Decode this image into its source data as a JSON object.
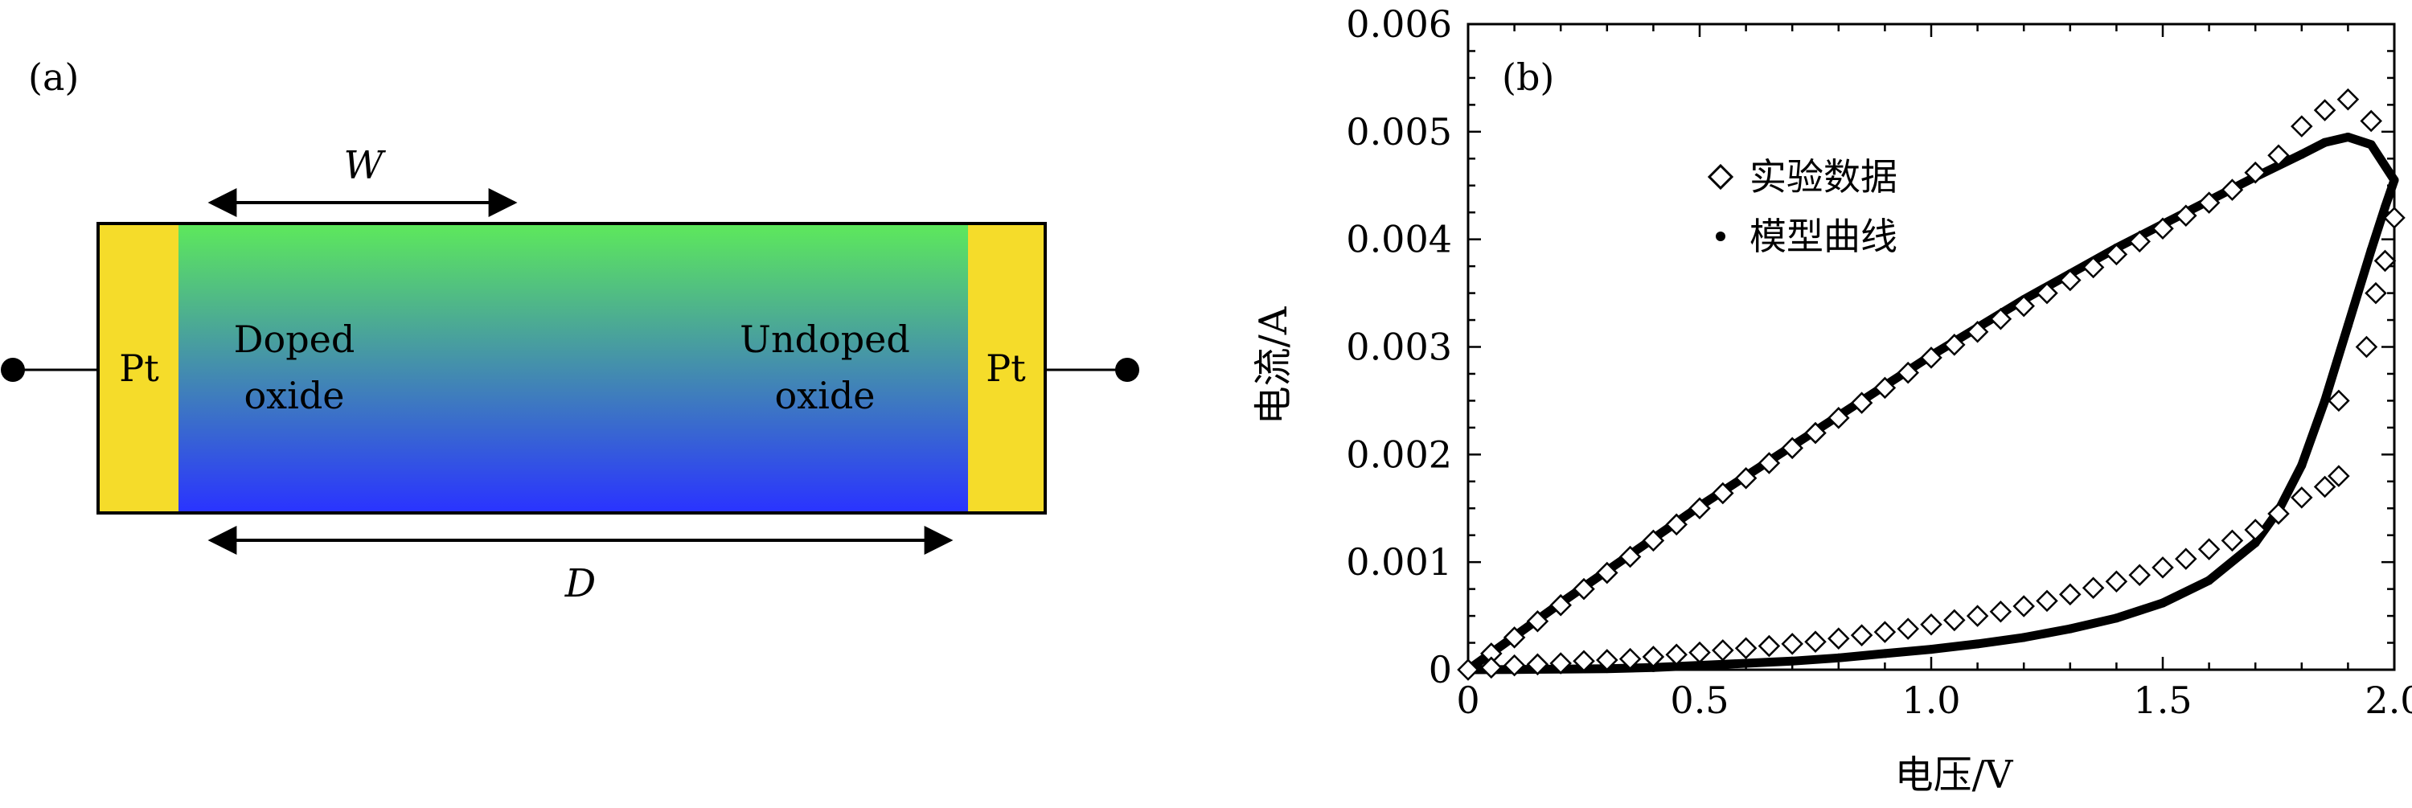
{
  "panel_a": {
    "label": "(a)",
    "width_label": "W",
    "length_label": "D",
    "left_electrode": "Pt",
    "right_electrode": "Pt",
    "doped_region_line1": "Doped",
    "doped_region_line2": "oxide",
    "undoped_region_line1": "Undoped",
    "undoped_region_line2": "oxide",
    "colors": {
      "electrode": "#f5dc2a",
      "gradient_top": "#5de85c",
      "gradient_bottom": "#2a34ff"
    }
  },
  "panel_b": {
    "label": "(b)",
    "legend": {
      "experimental": "实验数据",
      "model": "模型曲线"
    }
  },
  "chart_data": {
    "type": "scatter",
    "xlabel": "电压/V",
    "ylabel": "电流/A",
    "xlim": [
      0,
      2.0
    ],
    "ylim": [
      0,
      0.006
    ],
    "x_ticks": [
      "0",
      "0.5",
      "1.0",
      "1.5",
      "2.0"
    ],
    "y_ticks": [
      "0",
      "0.001",
      "0.002",
      "0.003",
      "0.004",
      "0.005",
      "0.006"
    ],
    "grid": false,
    "legend_position": "top-left",
    "series": [
      {
        "name": "实验数据",
        "marker": "diamond",
        "points": [
          [
            0.0,
            0.0
          ],
          [
            0.05,
            0.00015
          ],
          [
            0.1,
            0.0003
          ],
          [
            0.15,
            0.00045
          ],
          [
            0.2,
            0.0006
          ],
          [
            0.25,
            0.00075
          ],
          [
            0.3,
            0.0009
          ],
          [
            0.35,
            0.00105
          ],
          [
            0.4,
            0.0012
          ],
          [
            0.45,
            0.00135
          ],
          [
            0.5,
            0.0015
          ],
          [
            0.55,
            0.00164
          ],
          [
            0.6,
            0.00178
          ],
          [
            0.65,
            0.00192
          ],
          [
            0.7,
            0.00206
          ],
          [
            0.75,
            0.0022
          ],
          [
            0.8,
            0.00234
          ],
          [
            0.85,
            0.00248
          ],
          [
            0.9,
            0.00262
          ],
          [
            0.95,
            0.00276
          ],
          [
            1.0,
            0.0029
          ],
          [
            1.05,
            0.00302
          ],
          [
            1.1,
            0.00314
          ],
          [
            1.15,
            0.00326
          ],
          [
            1.2,
            0.00338
          ],
          [
            1.25,
            0.0035
          ],
          [
            1.3,
            0.00362
          ],
          [
            1.35,
            0.00374
          ],
          [
            1.4,
            0.00386
          ],
          [
            1.45,
            0.00398
          ],
          [
            1.5,
            0.0041
          ],
          [
            1.55,
            0.00422
          ],
          [
            1.6,
            0.00434
          ],
          [
            1.65,
            0.00446
          ],
          [
            1.7,
            0.00462
          ],
          [
            1.75,
            0.00478
          ],
          [
            1.8,
            0.00505
          ],
          [
            1.85,
            0.0052
          ],
          [
            1.9,
            0.0053
          ],
          [
            1.95,
            0.0051
          ],
          [
            2.0,
            0.0042
          ],
          [
            1.98,
            0.0038
          ],
          [
            1.96,
            0.0035
          ],
          [
            1.94,
            0.003
          ],
          [
            1.88,
            0.0025
          ],
          [
            1.88,
            0.0018
          ],
          [
            1.85,
            0.0017
          ],
          [
            1.8,
            0.0016
          ],
          [
            1.75,
            0.00145
          ],
          [
            1.7,
            0.0013
          ],
          [
            1.65,
            0.0012
          ],
          [
            1.6,
            0.00112
          ],
          [
            1.55,
            0.00103
          ],
          [
            1.5,
            0.00095
          ],
          [
            1.45,
            0.00088
          ],
          [
            1.4,
            0.00082
          ],
          [
            1.35,
            0.00076
          ],
          [
            1.3,
            0.0007
          ],
          [
            1.25,
            0.00064
          ],
          [
            1.2,
            0.00059
          ],
          [
            1.15,
            0.00054
          ],
          [
            1.1,
            0.0005
          ],
          [
            1.05,
            0.00046
          ],
          [
            1.0,
            0.00042
          ],
          [
            0.95,
            0.00038
          ],
          [
            0.9,
            0.00035
          ],
          [
            0.85,
            0.00032
          ],
          [
            0.8,
            0.00029
          ],
          [
            0.75,
            0.00026
          ],
          [
            0.7,
            0.00024
          ],
          [
            0.65,
            0.00022
          ],
          [
            0.6,
            0.0002
          ],
          [
            0.55,
            0.00018
          ],
          [
            0.5,
            0.00016
          ],
          [
            0.45,
            0.00014
          ],
          [
            0.4,
            0.00012
          ],
          [
            0.35,
            0.0001
          ],
          [
            0.3,
            9e-05
          ],
          [
            0.25,
            8e-05
          ],
          [
            0.2,
            6e-05
          ],
          [
            0.15,
            5e-05
          ],
          [
            0.1,
            4e-05
          ],
          [
            0.05,
            2e-05
          ]
        ]
      },
      {
        "name": "模型曲线",
        "marker": "dot",
        "points": [
          [
            0.0,
            0.0
          ],
          [
            0.1,
            0.00031
          ],
          [
            0.2,
            0.00062
          ],
          [
            0.3,
            0.00092
          ],
          [
            0.4,
            0.00122
          ],
          [
            0.5,
            0.00152
          ],
          [
            0.6,
            0.0018
          ],
          [
            0.7,
            0.00208
          ],
          [
            0.8,
            0.00236
          ],
          [
            0.9,
            0.00264
          ],
          [
            1.0,
            0.00292
          ],
          [
            1.1,
            0.00318
          ],
          [
            1.2,
            0.00344
          ],
          [
            1.3,
            0.00368
          ],
          [
            1.4,
            0.00392
          ],
          [
            1.5,
            0.00414
          ],
          [
            1.6,
            0.00436
          ],
          [
            1.7,
            0.00458
          ],
          [
            1.8,
            0.00479
          ],
          [
            1.85,
            0.0049
          ],
          [
            1.9,
            0.00495
          ],
          [
            1.95,
            0.00488
          ],
          [
            2.0,
            0.00455
          ],
          [
            1.98,
            0.0043
          ],
          [
            1.95,
            0.0039
          ],
          [
            1.9,
            0.0032
          ],
          [
            1.85,
            0.0025
          ],
          [
            1.8,
            0.0019
          ],
          [
            1.75,
            0.00148
          ],
          [
            1.7,
            0.00118
          ],
          [
            1.6,
            0.00083
          ],
          [
            1.5,
            0.00062
          ],
          [
            1.4,
            0.00048
          ],
          [
            1.3,
            0.00038
          ],
          [
            1.2,
            0.0003
          ],
          [
            1.1,
            0.00024
          ],
          [
            1.0,
            0.00019
          ],
          [
            0.9,
            0.00015
          ],
          [
            0.8,
            0.00011
          ],
          [
            0.7,
            8e-05
          ],
          [
            0.6,
            6e-05
          ],
          [
            0.5,
            4e-05
          ],
          [
            0.4,
            2e-05
          ],
          [
            0.3,
            1e-05
          ],
          [
            0.2,
            5e-06
          ],
          [
            0.1,
            2e-06
          ],
          [
            0.0,
            0.0
          ]
        ]
      }
    ]
  }
}
